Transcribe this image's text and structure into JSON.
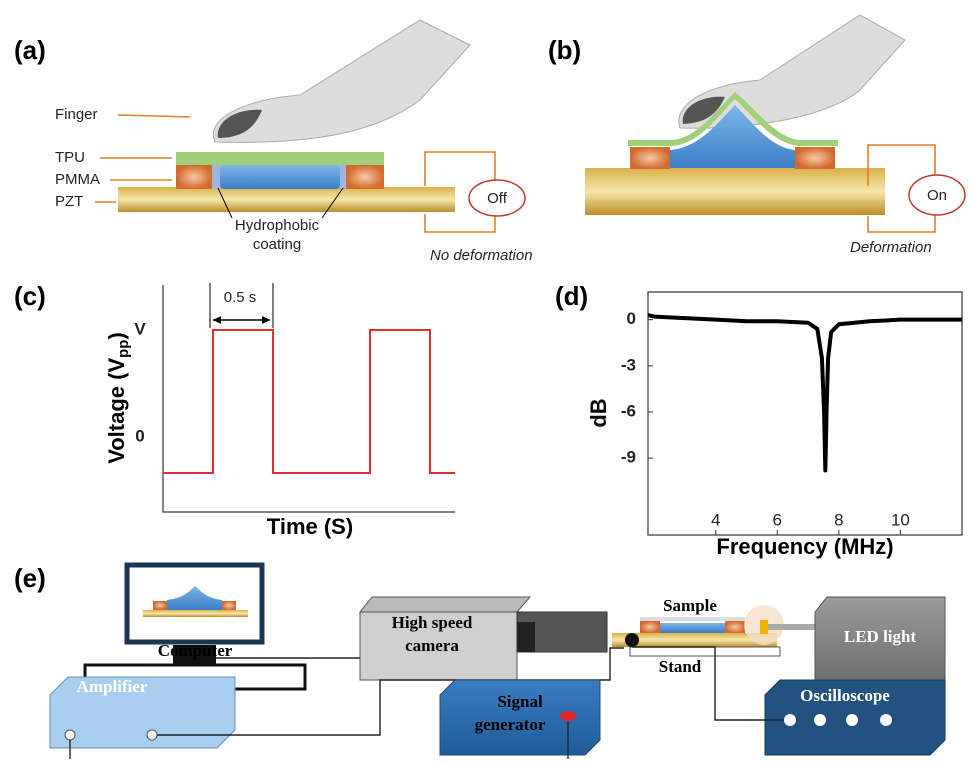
{
  "figure": {
    "a": {
      "label": "(a)",
      "finger": "Finger",
      "tpu": "TPU",
      "pmma": "PMMA",
      "pzt": "PZT",
      "coating": [
        "Hydrophobic",
        "coating"
      ],
      "state": "Off",
      "note": "No deformation"
    },
    "b": {
      "label": "(b)",
      "state": "On",
      "note": "Deformation"
    },
    "c": {
      "label": "(c)",
      "interval": "0.5 s",
      "high_tick": "V",
      "low_tick": "0",
      "y_label": {
        "main": "Voltage (V",
        "sub": "pp",
        "end": ")"
      },
      "x_label": "Time (S)"
    },
    "e": {
      "label": "(e)",
      "computer": "Computer",
      "camera": [
        "High speed",
        "camera"
      ],
      "sample": "Sample",
      "stand": "Stand",
      "led": "LED light",
      "amplifier": "Amplifier",
      "signal": [
        "Signal",
        "generator"
      ],
      "oscilloscope": "Oscilloscope"
    }
  },
  "chart_data": {
    "type": "line",
    "title": "(d)",
    "x_label": "Frequency (MHz)",
    "y_label": "dB",
    "color": "#000000",
    "x": [
      1.8,
      2,
      3,
      4,
      5,
      6,
      7,
      7.3,
      7.45,
      7.52,
      7.56,
      7.6,
      7.65,
      7.75,
      8,
      9,
      10,
      11,
      12
    ],
    "values": [
      0.3,
      0.2,
      0.1,
      0,
      -0.1,
      -0.1,
      -0.2,
      -0.6,
      -2.5,
      -6,
      -9.8,
      -6,
      -2.5,
      -0.8,
      -0.3,
      -0.1,
      0,
      0,
      0
    ],
    "xlim": [
      1.8,
      12
    ],
    "ylim": [
      -14,
      1.8
    ],
    "xticks": [
      4,
      6,
      8,
      10
    ],
    "yticks": [
      0,
      -3,
      -6,
      -9
    ]
  }
}
